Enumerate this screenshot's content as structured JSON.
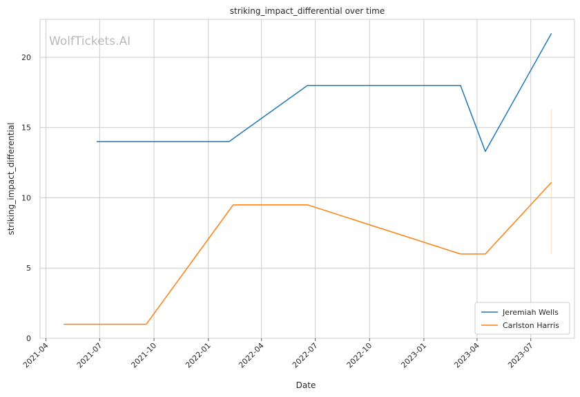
{
  "chart_data": {
    "type": "line",
    "title": "striking_impact_differential over time",
    "xlabel": "Date",
    "ylabel": "striking_impact_differential",
    "watermark": "WolfTickets.AI",
    "x_ticks": [
      "2021-04",
      "2021-07",
      "2021-10",
      "2022-01",
      "2022-04",
      "2022-07",
      "2022-10",
      "2023-01",
      "2023-04",
      "2023-07"
    ],
    "y_ticks": [
      0,
      5,
      10,
      15,
      20
    ],
    "xlim": [
      "2021-03-22",
      "2023-09-13"
    ],
    "ylim": [
      0,
      22.7
    ],
    "grid": true,
    "legend_position": "bottom-right",
    "colors": {
      "series_0": "#1f77b4",
      "series_1": "#ff7f0e"
    },
    "series": [
      {
        "name": "Jeremiah Wells",
        "points": [
          {
            "x": "2021-06-26",
            "y": 14.0
          },
          {
            "x": "2022-02-05",
            "y": 14.0
          },
          {
            "x": "2022-06-18",
            "y": 18.0
          },
          {
            "x": "2023-03-04",
            "y": 18.0
          },
          {
            "x": "2023-04-15",
            "y": 13.3
          },
          {
            "x": "2023-08-05",
            "y": 21.7
          }
        ]
      },
      {
        "name": "Carlston Harris",
        "points": [
          {
            "x": "2021-05-01",
            "y": 1.0
          },
          {
            "x": "2021-09-18",
            "y": 1.0
          },
          {
            "x": "2022-02-12",
            "y": 9.5
          },
          {
            "x": "2022-06-18",
            "y": 9.5
          },
          {
            "x": "2023-03-04",
            "y": 6.0
          },
          {
            "x": "2023-04-15",
            "y": 6.0
          },
          {
            "x": "2023-08-05",
            "y": 11.1
          }
        ],
        "error_bar": {
          "x": "2023-08-05",
          "low": 6.0,
          "high": 16.3
        }
      }
    ]
  }
}
